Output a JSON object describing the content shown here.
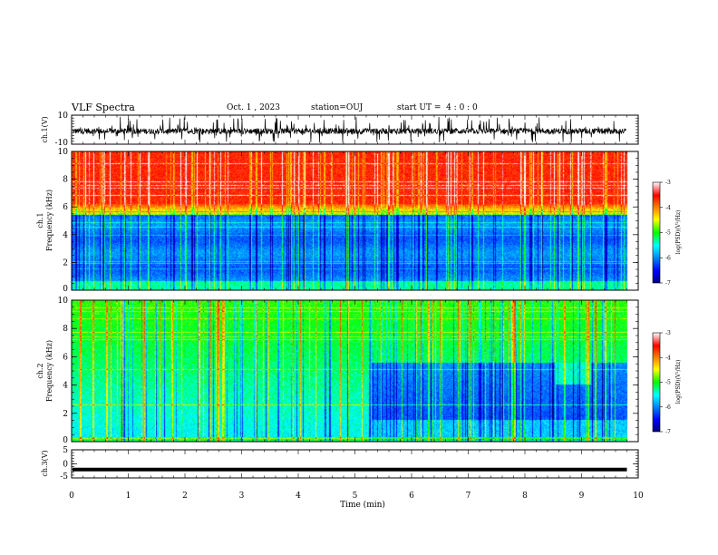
{
  "header": {
    "title": "VLF Spectra",
    "date": "Oct. 1 , 2023",
    "station": "station=OUJ",
    "start_ut": "start UT =  4 : 0 : 0"
  },
  "chart_data": [
    {
      "type": "line",
      "panel": "ch1-waveform",
      "ylabel": "ch.1(V)",
      "ylim": [
        -10,
        10
      ],
      "yticks": [
        "10",
        "-10"
      ],
      "baseline_range": [
        -3,
        1
      ],
      "spike_range": [
        -9,
        9
      ],
      "color": "#000000"
    },
    {
      "type": "heatmap",
      "panel": "ch1-spectrogram",
      "ylabel_line1": "ch.1",
      "ylabel_line2": "Frequency (kHz)",
      "ylim": [
        0,
        10
      ],
      "yticks": [
        "0",
        "2",
        "4",
        "6",
        "8",
        "10"
      ],
      "noise_floor_khz": 5.8,
      "colorbar": {
        "label": "log(PSD)(V²/Hz)",
        "range": [
          -7,
          -3
        ],
        "ticks": [
          "-3",
          "-4",
          "-5",
          "-6",
          "-7"
        ]
      }
    },
    {
      "type": "heatmap",
      "panel": "ch2-spectrogram",
      "ylabel_line1": "ch.2",
      "ylabel_line2": "Frequency (kHz)",
      "ylim": [
        0,
        10
      ],
      "yticks": [
        "0",
        "2",
        "4",
        "6",
        "8",
        "10"
      ],
      "quiet_interval_min": [
        5.3,
        9.8
      ],
      "colorbar": {
        "label": "log(PSD)(V²/Hz)",
        "range": [
          -7,
          -3
        ],
        "ticks": [
          "-3",
          "-4",
          "-5",
          "-6",
          "-7"
        ]
      }
    },
    {
      "type": "line",
      "panel": "ch3-waveform",
      "ylabel": "ch.3(V)",
      "ylim": [
        -5,
        5
      ],
      "yticks": [
        "5",
        "0",
        "-5"
      ],
      "level": -2,
      "color": "#000000"
    }
  ],
  "xaxis": {
    "label": "Time (min)",
    "xlim": [
      0,
      10
    ],
    "ticks": [
      "0",
      "1",
      "2",
      "3",
      "4",
      "5",
      "6",
      "7",
      "8",
      "9",
      "10"
    ],
    "data_end_min": 9.8
  }
}
